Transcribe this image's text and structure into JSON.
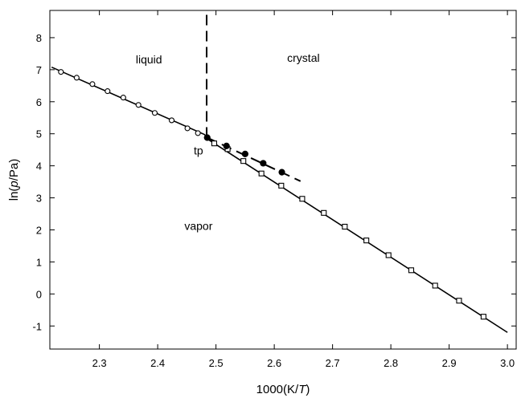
{
  "chart_data": {
    "type": "scatter",
    "title": "",
    "xlabel_parts": [
      "1000(K/",
      "T",
      ")"
    ],
    "ylabel_parts": [
      "ln(",
      "p",
      "/Pa)"
    ],
    "xlim": [
      2.215,
      3.015
    ],
    "ylim": [
      -1.72,
      8.85
    ],
    "x_ticks": [
      2.3,
      2.4,
      2.5,
      2.6,
      2.7,
      2.8,
      2.9,
      3.0
    ],
    "x_tick_labels": [
      "2.3",
      "2.4",
      "2.5",
      "2.6",
      "2.7",
      "2.8",
      "2.9",
      "3.0"
    ],
    "y_ticks": [
      -1,
      0,
      1,
      2,
      3,
      4,
      5,
      6,
      7,
      8
    ],
    "y_tick_labels": [
      "-1",
      "0",
      "1",
      "2",
      "3",
      "4",
      "5",
      "6",
      "7",
      "8"
    ],
    "grid": false,
    "legend": "none",
    "series": [
      {
        "marker": "open-circle",
        "x": [
          2.234,
          2.261,
          2.288,
          2.314,
          2.341,
          2.367,
          2.395,
          2.424,
          2.451,
          2.469
        ],
        "y": [
          6.93,
          6.75,
          6.55,
          6.33,
          6.13,
          5.9,
          5.65,
          5.42,
          5.17,
          5.02
        ]
      },
      {
        "marker": "open-square",
        "x": [
          2.497,
          2.52,
          2.547,
          2.578,
          2.612,
          2.648,
          2.685,
          2.721,
          2.758,
          2.796,
          2.835,
          2.876,
          2.917,
          2.959
        ],
        "y": [
          4.7,
          4.52,
          4.15,
          3.76,
          3.38,
          2.97,
          2.53,
          2.1,
          1.67,
          1.21,
          0.74,
          0.26,
          -0.21,
          -0.71
        ]
      },
      {
        "marker": "filled-circle",
        "x": [
          2.485,
          2.518,
          2.55,
          2.581,
          2.613
        ],
        "y": [
          4.88,
          4.62,
          4.37,
          4.08,
          3.8
        ]
      }
    ],
    "lines": [
      {
        "style": "solid",
        "x": [
          2.218,
          2.48,
          2.5
        ],
        "y": [
          7.08,
          4.98,
          4.68
        ]
      },
      {
        "style": "solid",
        "x": [
          2.48,
          3.0
        ],
        "y": [
          4.9,
          -1.2
        ]
      },
      {
        "style": "dashed",
        "x": [
          2.485,
          2.645
        ],
        "y": [
          4.88,
          3.52
        ]
      },
      {
        "style": "dashed",
        "x": [
          2.484,
          2.484
        ],
        "y": [
          4.88,
          8.85
        ]
      }
    ],
    "annotations": [
      {
        "text": "liquid",
        "x": 2.385,
        "y": 7.2
      },
      {
        "text": "crystal",
        "x": 2.65,
        "y": 7.25
      },
      {
        "text": "tp",
        "x": 2.47,
        "y": 4.35
      },
      {
        "text": "vapor",
        "x": 2.47,
        "y": 2.0
      }
    ]
  }
}
